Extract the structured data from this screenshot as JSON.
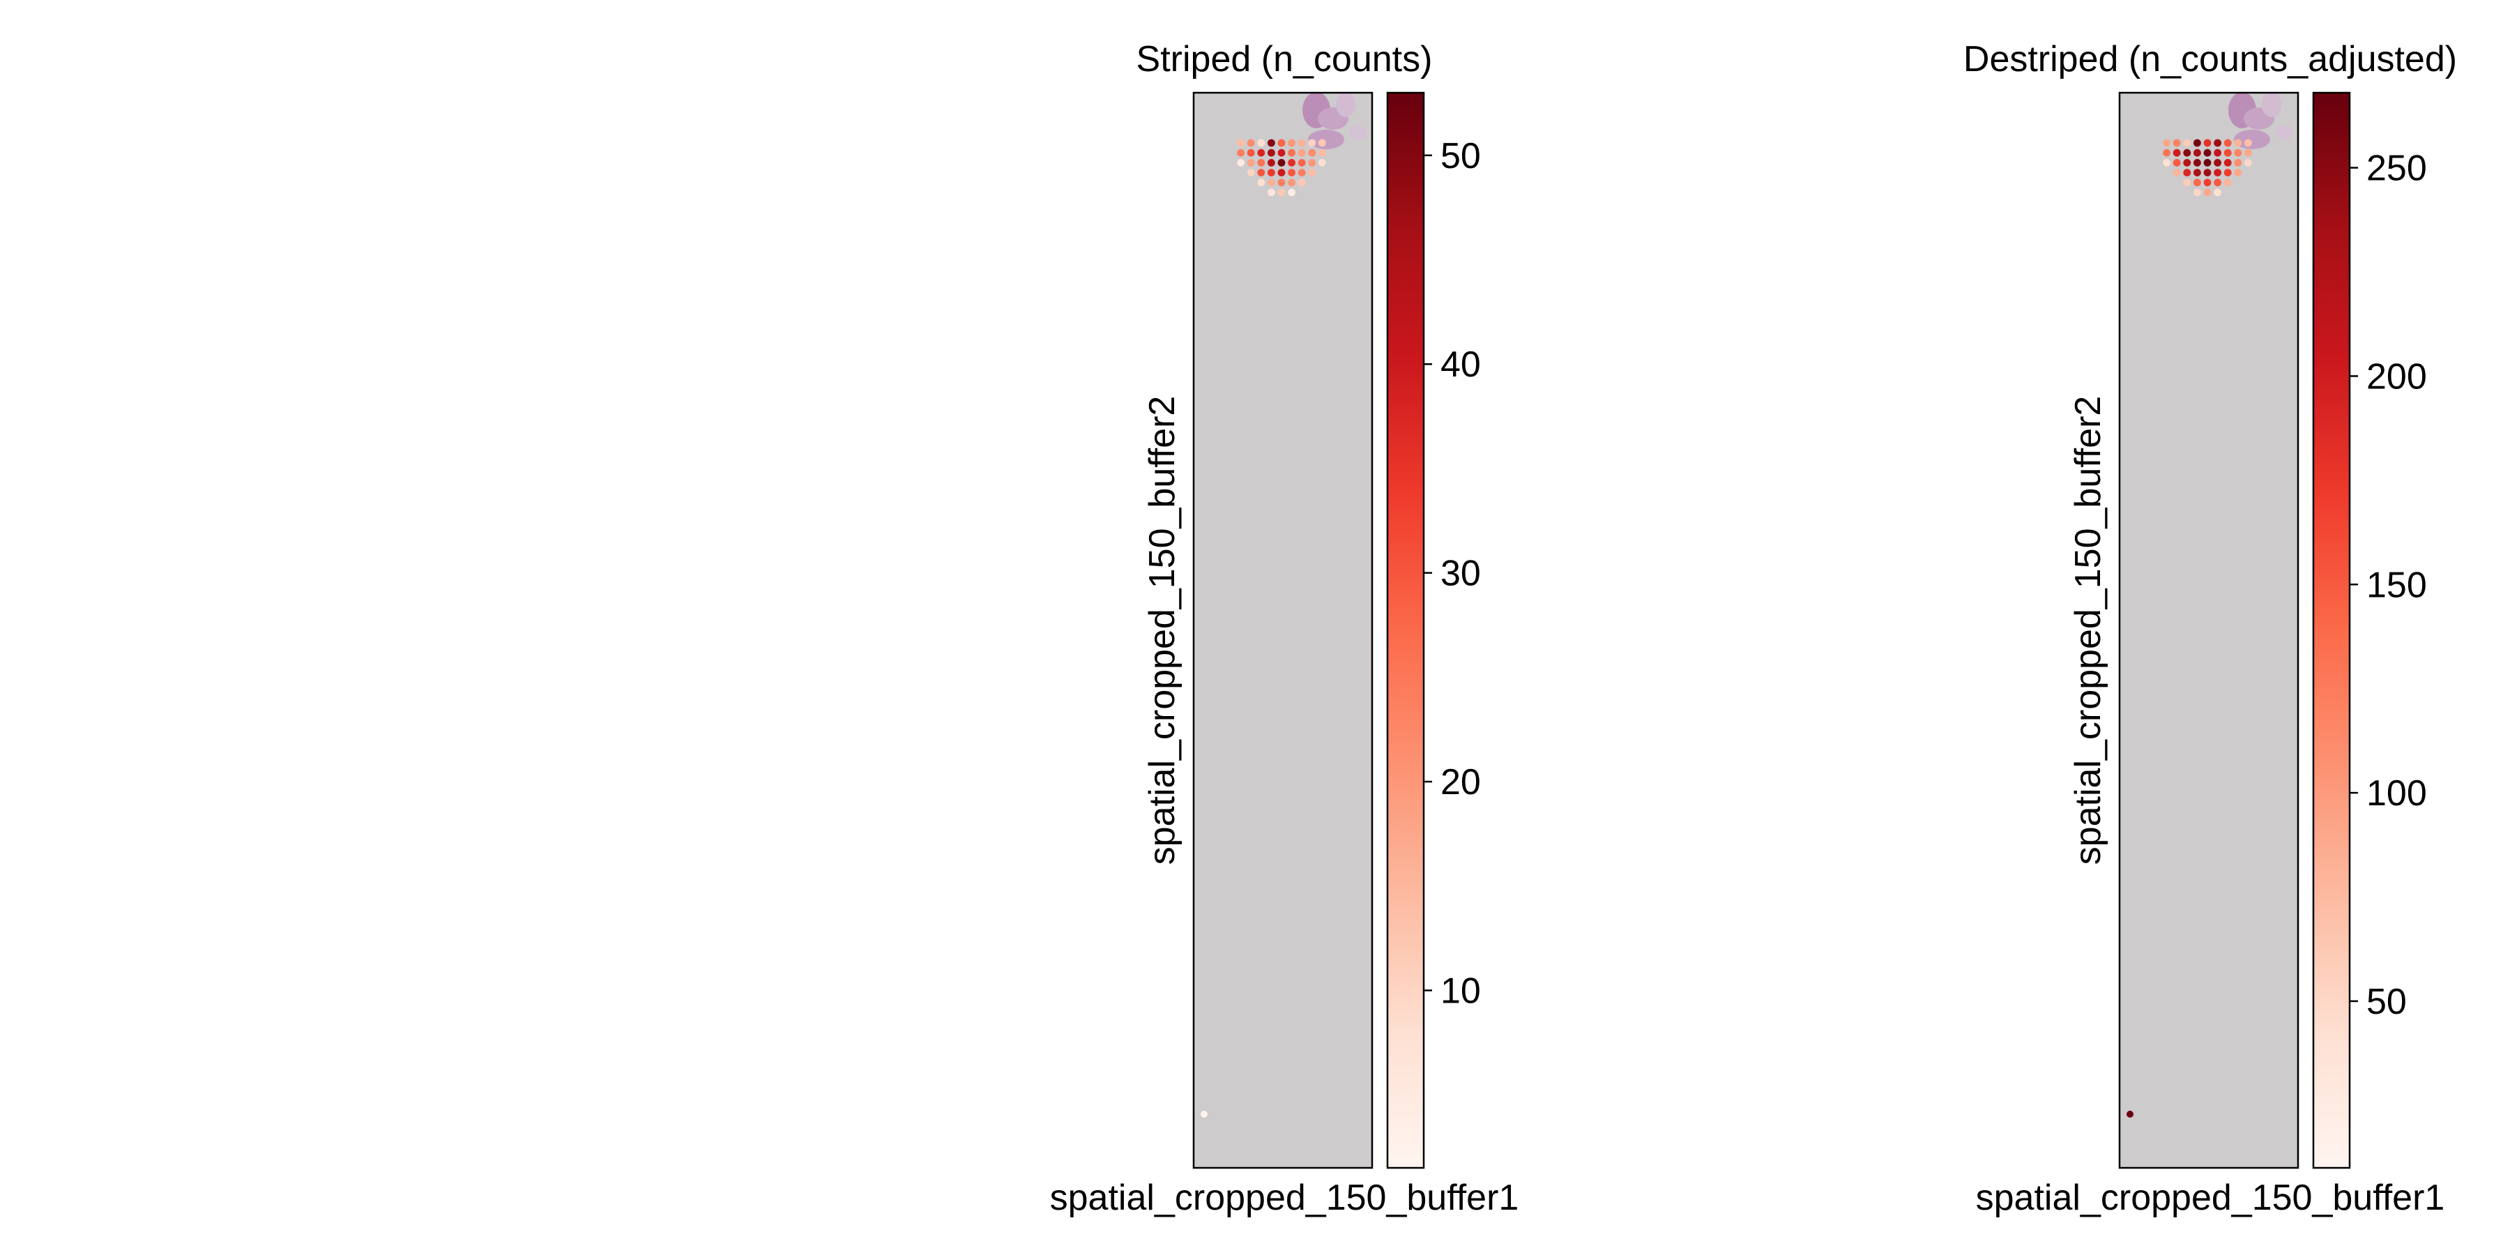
{
  "chart_data": [
    {
      "type": "scatter",
      "subtype": "spatial",
      "title": "Striped (n_counts)",
      "xlabel": "spatial_cropped_150_buffer1",
      "ylabel": "spatial_cropped_150_buffer2",
      "background": "tissue image (mostly gray) with purple H&E stain at top-right",
      "colormap": "Reds",
      "colorbar": {
        "min": 1.5,
        "max": 53,
        "ticks": [
          10,
          20,
          30,
          40,
          50
        ]
      },
      "spots": {
        "grid_cols": 9,
        "rows": [
          {
            "row": 0,
            "values": [
              14,
              22,
              8,
              50,
              28,
              20,
              16,
              10,
              12
            ]
          },
          {
            "row": 1,
            "values": [
              24,
              30,
              38,
              46,
              40,
              26,
              18,
              22,
              14
            ]
          },
          {
            "row": 2,
            "values": [
              5,
              18,
              26,
              44,
              52,
              36,
              28,
              20,
              8
            ]
          },
          {
            "row": 3,
            "values": [
              null,
              10,
              30,
              34,
              40,
              30,
              24,
              14,
              null
            ]
          },
          {
            "row": 4,
            "values": [
              null,
              null,
              8,
              16,
              24,
              20,
              12,
              null,
              null
            ]
          },
          {
            "row": 5,
            "values": [
              null,
              null,
              null,
              6,
              12,
              4,
              null,
              null,
              null
            ]
          }
        ],
        "outlier": {
          "value": 2
        }
      }
    },
    {
      "type": "scatter",
      "subtype": "spatial",
      "title": "Destriped (n_counts_adjusted)",
      "xlabel": "spatial_cropped_150_buffer1",
      "ylabel": "spatial_cropped_150_buffer2",
      "background": "tissue image (mostly gray) with purple H&E stain at top-right",
      "colormap": "Reds",
      "colorbar": {
        "min": 10,
        "max": 268,
        "ticks": [
          50,
          100,
          150,
          200,
          250
        ]
      },
      "spots": {
        "grid_cols": 9,
        "rows": [
          {
            "row": 0,
            "values": [
              90,
              120,
              60,
              260,
              180,
              240,
              150,
              80,
              70
            ]
          },
          {
            "row": 1,
            "values": [
              130,
              200,
              250,
              230,
              260,
              210,
              160,
              120,
              90
            ]
          },
          {
            "row": 2,
            "values": [
              40,
              150,
              220,
              250,
              265,
              240,
              200,
              110,
              50
            ]
          },
          {
            "row": 3,
            "values": [
              null,
              80,
              190,
              230,
              240,
              200,
              170,
              90,
              null
            ]
          },
          {
            "row": 4,
            "values": [
              null,
              null,
              60,
              140,
              170,
              150,
              80,
              null,
              null
            ]
          },
          {
            "row": 5,
            "values": [
              null,
              null,
              null,
              50,
              90,
              40,
              null,
              null,
              null
            ]
          }
        ],
        "outlier": {
          "value": 265
        }
      }
    }
  ]
}
